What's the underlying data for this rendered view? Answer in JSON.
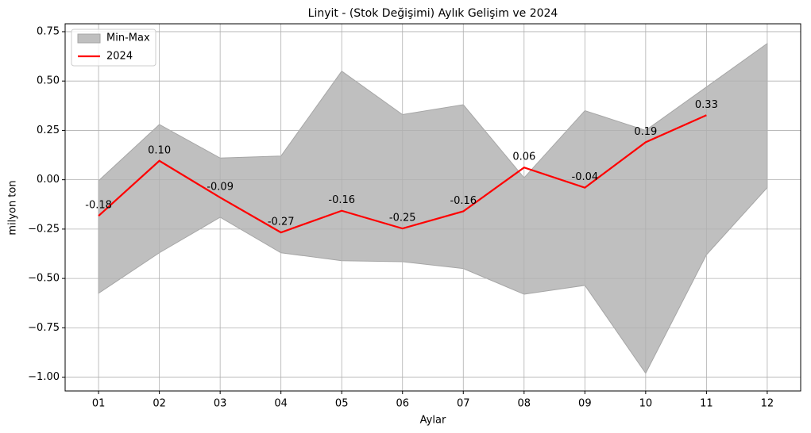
{
  "chart_data": {
    "type": "band-line",
    "title": "Linyit - (Stok Değişimi) Aylık Gelişim ve 2024",
    "xlabel": "Aylar",
    "ylabel": "milyon ton",
    "categories": [
      "01",
      "02",
      "03",
      "04",
      "05",
      "06",
      "07",
      "08",
      "09",
      "10",
      "11",
      "12"
    ],
    "band": {
      "name": "Min-Max",
      "color": "#bfbfbf",
      "edge_color": "#a6a6a6",
      "upper": [
        -0.005,
        0.28,
        0.11,
        0.12,
        0.55,
        0.33,
        0.38,
        0.01,
        0.35,
        0.25,
        0.47,
        0.69
      ],
      "lower": [
        -0.575,
        -0.37,
        -0.19,
        -0.37,
        -0.41,
        -0.415,
        -0.45,
        -0.58,
        -0.535,
        -0.98,
        -0.38,
        -0.04
      ]
    },
    "series": [
      {
        "name": "2024",
        "color": "#ff0000",
        "values": [
          -0.183,
          0.096,
          -0.09,
          -0.267,
          -0.157,
          -0.247,
          -0.16,
          0.062,
          -0.04,
          0.19,
          0.327,
          null
        ],
        "value_labels": [
          "-0.18",
          "0.10",
          "-0.09",
          "-0.27",
          "-0.16",
          "-0.25",
          "-0.16",
          "0.06",
          "-0.04",
          "0.19",
          "0.33",
          null
        ]
      }
    ],
    "ylim": [
      -1.07,
      0.79
    ],
    "yticks": [
      {
        "value": -1,
        "label": "−1.00"
      },
      {
        "value": -0.75,
        "label": "−0.75"
      },
      {
        "value": -0.5,
        "label": "−0.50"
      },
      {
        "value": -0.25,
        "label": "−0.25"
      },
      {
        "value": 0,
        "label": "0.00"
      },
      0.25,
      {
        "value": 0.5,
        "label": "0.50"
      },
      0.75
    ],
    "grid": true,
    "legend": "upper left"
  }
}
